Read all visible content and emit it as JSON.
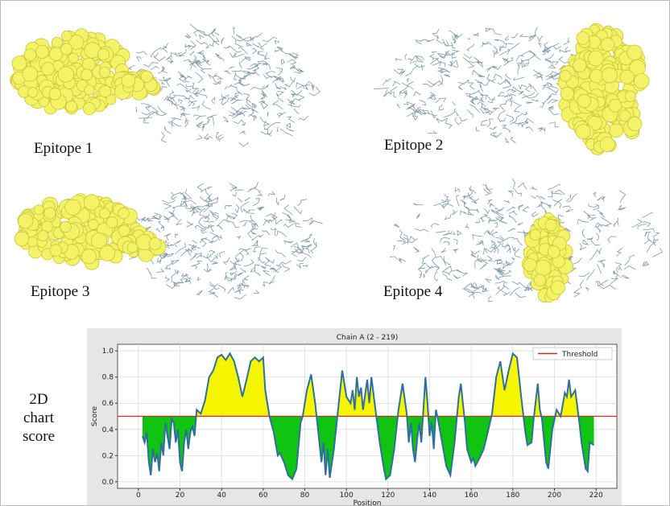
{
  "figure": {
    "epitope_labels": [
      "Epitope 1",
      "Epitope 2",
      "Epitope 3",
      "Epitope 4"
    ],
    "side_label": [
      "2D",
      "chart",
      "score"
    ]
  },
  "chart_data": {
    "type": "line",
    "title": "Chain A (2 - 219)",
    "xlabel": "Position",
    "ylabel": "Score",
    "xlim": [
      -10,
      230
    ],
    "xticks": [
      0,
      20,
      40,
      60,
      80,
      100,
      120,
      140,
      160,
      180,
      200,
      220
    ],
    "ylim": [
      -0.05,
      1.05
    ],
    "yticks": [
      {
        "value": 0,
        "label": "0.0"
      },
      {
        "value": 0.2,
        "label": "0.2"
      },
      {
        "value": 0.4,
        "label": "0.4"
      },
      {
        "value": 0.6,
        "label": "0.6"
      },
      {
        "value": 0.8,
        "label": "0.8"
      },
      {
        "value": 1,
        "label": "1.0"
      }
    ],
    "grid": true,
    "legend": "upper right",
    "threshold": {
      "name": "Threshold",
      "value": 0.5,
      "color": "#d62728"
    },
    "above_color": "#f5f500",
    "below_color": "#11c411",
    "series": [
      {
        "name": "Score",
        "color": "#2f6f9f",
        "x": [
          2,
          3,
          4,
          5,
          6,
          7,
          8,
          9,
          10,
          11,
          12,
          13,
          14,
          15,
          16,
          17,
          18,
          19,
          20,
          21,
          22,
          23,
          24,
          25,
          26,
          27,
          28,
          30,
          32,
          34,
          36,
          38,
          40,
          42,
          44,
          46,
          48,
          50,
          52,
          54,
          56,
          58,
          60,
          61,
          63,
          65,
          67,
          68,
          70,
          72,
          74,
          76,
          78,
          79,
          81,
          83,
          85,
          86,
          88,
          89,
          90,
          91,
          92,
          94,
          96,
          98,
          100,
          102,
          103,
          104,
          105,
          106,
          107,
          108,
          110,
          111,
          112,
          114,
          116,
          117,
          118,
          119,
          121,
          123,
          125,
          127,
          129,
          130,
          131,
          132,
          133,
          134,
          135,
          136,
          138,
          139,
          140,
          141,
          142,
          143,
          144,
          146,
          148,
          150,
          152,
          154,
          155,
          156,
          157,
          158,
          160,
          161,
          162,
          164,
          166,
          168,
          170,
          172,
          174,
          176,
          178,
          180,
          182,
          184,
          186,
          187,
          189,
          190,
          192,
          193,
          194,
          196,
          197,
          199,
          201,
          203,
          205,
          206,
          207,
          208,
          210,
          212,
          213,
          214,
          215,
          216,
          217,
          219
        ],
        "values": [
          0.35,
          0.3,
          0.38,
          0.15,
          0.05,
          0.25,
          0.15,
          0.22,
          0.08,
          0.3,
          0.2,
          0.45,
          0.35,
          0.25,
          0.48,
          0.45,
          0.3,
          0.4,
          0.15,
          0.08,
          0.3,
          0.4,
          0.25,
          0.38,
          0.42,
          0.35,
          0.55,
          0.52,
          0.62,
          0.8,
          0.85,
          0.95,
          0.97,
          0.93,
          0.98,
          0.92,
          0.8,
          0.65,
          0.78,
          0.92,
          0.95,
          0.92,
          0.95,
          0.7,
          0.5,
          0.38,
          0.2,
          0.22,
          0.15,
          0.05,
          0.02,
          0.1,
          0.45,
          0.5,
          0.7,
          0.82,
          0.6,
          0.45,
          0.15,
          0.3,
          0.05,
          0.25,
          0.03,
          0.25,
          0.55,
          0.85,
          0.65,
          0.6,
          0.7,
          0.55,
          0.8,
          0.65,
          0.72,
          0.55,
          0.78,
          0.6,
          0.8,
          0.55,
          0.3,
          0.2,
          0.1,
          0.02,
          0.05,
          0.25,
          0.55,
          0.75,
          0.52,
          0.3,
          0.45,
          0.25,
          0.15,
          0.32,
          0.45,
          0.3,
          0.8,
          0.6,
          0.35,
          0.45,
          0.25,
          0.55,
          0.48,
          0.3,
          0.12,
          0.05,
          0.3,
          0.65,
          0.75,
          0.6,
          0.45,
          0.25,
          0.15,
          0.18,
          0.12,
          0.18,
          0.25,
          0.38,
          0.52,
          0.8,
          0.92,
          0.7,
          0.85,
          0.98,
          0.95,
          0.65,
          0.38,
          0.28,
          0.3,
          0.48,
          0.75,
          0.55,
          0.48,
          0.15,
          0.1,
          0.4,
          0.55,
          0.5,
          0.68,
          0.65,
          0.78,
          0.65,
          0.7,
          0.45,
          0.3,
          0.2,
          0.1,
          0.08,
          0.3,
          0.28
        ]
      }
    ]
  }
}
